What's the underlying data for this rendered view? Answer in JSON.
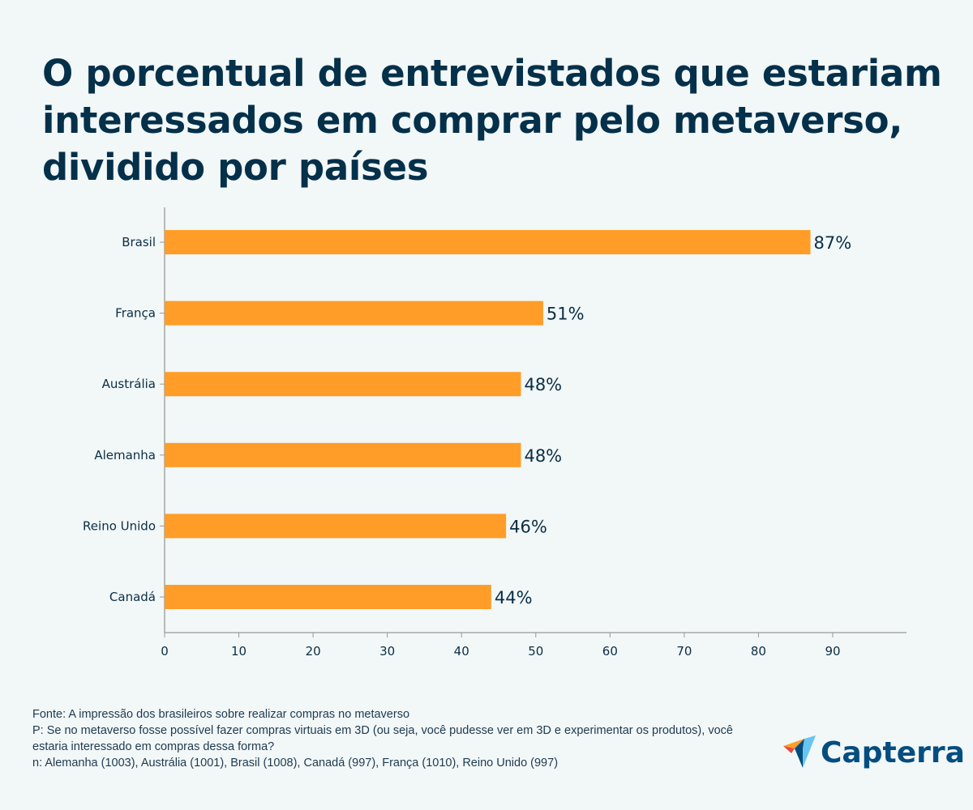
{
  "colors": {
    "background": "#f2f7f8",
    "bar": "#ff9d28",
    "title": "#04304a",
    "axis": "#999999",
    "text": "#0a2e45"
  },
  "chart_data": {
    "type": "bar",
    "orientation": "horizontal",
    "title": "O porcentual de entrevistados que estariam interessados em comprar pelo metaverso, dividido por países",
    "categories": [
      "Brasil",
      "França",
      "Austrália",
      "Alemanha",
      "Reino Unido",
      "Canadá"
    ],
    "values": [
      87,
      51,
      48,
      48,
      46,
      44
    ],
    "data_labels": [
      "87%",
      "51%",
      "48%",
      "48%",
      "46%",
      "44%"
    ],
    "xlim": [
      0,
      100
    ],
    "xticks": [
      0,
      10,
      20,
      30,
      40,
      50,
      60,
      70,
      80,
      90
    ],
    "grid": false,
    "xlabel": "",
    "ylabel": ""
  },
  "footer": {
    "source": "Fonte: A impressão dos brasileiros sobre realizar compras no metaverso",
    "question": "P: Se no metaverso fosse possível fazer compras virtuais em 3D (ou seja, você pudesse ver em 3D e experimentar os produtos), você estaria interessado em compras dessa forma?",
    "sample": "n: Alemanha (1003), Austrália (1001), Brasil (1008), Canadá (997), França (1010), Reino Unido (997)"
  },
  "logo": {
    "text": "Capterra",
    "icon": "capterra-arrow-icon"
  }
}
